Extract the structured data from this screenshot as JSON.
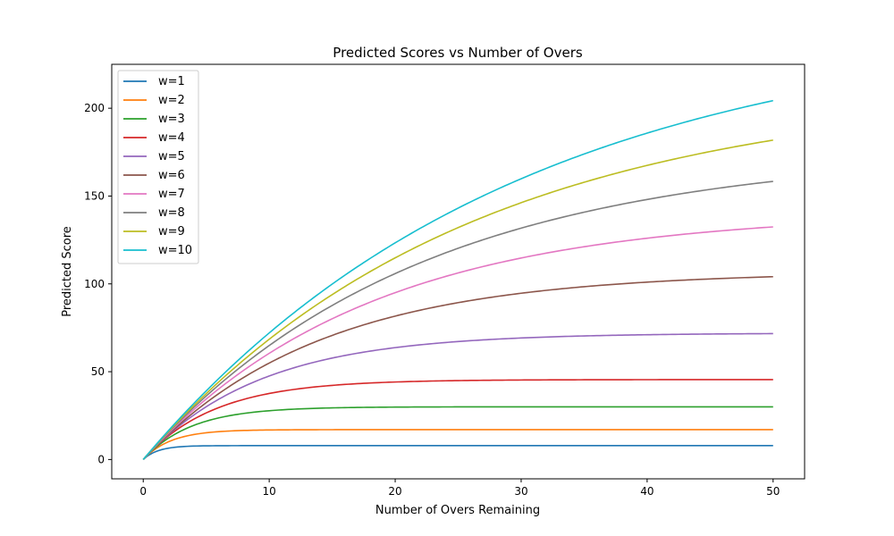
{
  "chart_data": {
    "type": "line",
    "title": "Predicted Scores vs Number of Overs",
    "xlabel": "Number of Overs Remaining",
    "ylabel": "Predicted Score",
    "xlim": [
      -2.5,
      52.5
    ],
    "ylim": [
      -11,
      225
    ],
    "xticks": [
      0,
      10,
      20,
      30,
      40,
      50
    ],
    "yticks": [
      0,
      50,
      100,
      150,
      200
    ],
    "grid": false,
    "legend": "top-left",
    "model": "Z(u) = Z0 * (1 - exp(-b*u))",
    "x_range": [
      0,
      50
    ],
    "series": [
      {
        "name": "w=1",
        "color": "#1f77b4",
        "Z0": 7.9,
        "b": 0.85
      },
      {
        "name": "w=2",
        "color": "#ff7f0e",
        "Z0": 17.0,
        "b": 0.45
      },
      {
        "name": "w=3",
        "color": "#2ca02c",
        "Z0": 30.0,
        "b": 0.26
      },
      {
        "name": "w=4",
        "color": "#d62728",
        "Z0": 45.5,
        "b": 0.175
      },
      {
        "name": "w=5",
        "color": "#9467bd",
        "Z0": 72.0,
        "b": 0.108
      },
      {
        "name": "w=6",
        "color": "#8c564b",
        "Z0": 107.0,
        "b": 0.072
      },
      {
        "name": "w=7",
        "color": "#e377c2",
        "Z0": 141.0,
        "b": 0.056
      },
      {
        "name": "w=8",
        "color": "#7f7f7f",
        "Z0": 176.0,
        "b": 0.046
      },
      {
        "name": "w=9",
        "color": "#bcbd22",
        "Z0": 212.0,
        "b": 0.039
      },
      {
        "name": "w=10",
        "color": "#17becf",
        "Z0": 250.0,
        "b": 0.034
      }
    ]
  }
}
